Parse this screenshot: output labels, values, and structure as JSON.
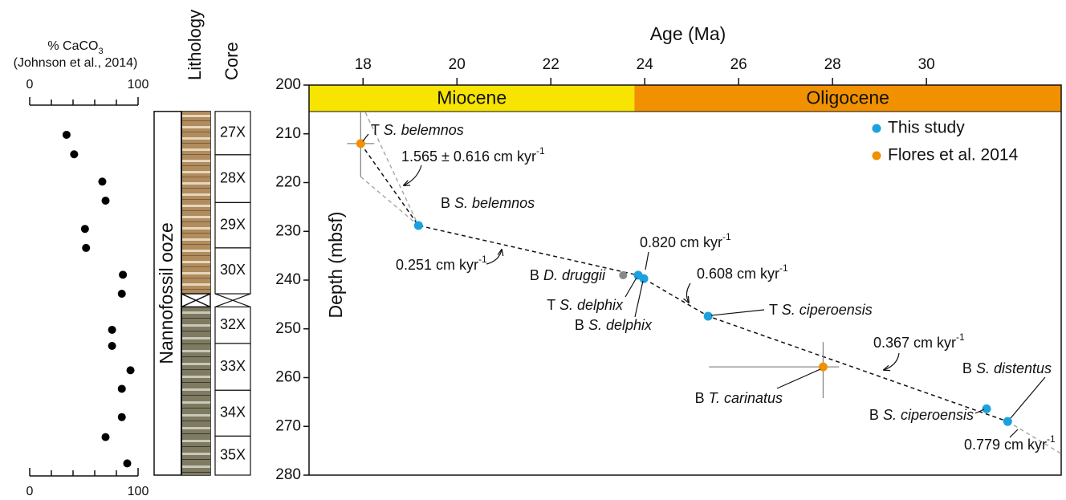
{
  "chart_data": [
    {
      "type": "scatter",
      "title": "% CaCO",
      "title_sub": "3",
      "subtitle": "(Johnson et al., 2014)",
      "xlim": [
        0,
        100
      ],
      "xticks": [
        0,
        100
      ],
      "xminorticks": [
        20,
        40,
        60,
        80
      ],
      "ylim": [
        200,
        280
      ],
      "color": "#000000",
      "x": [
        34,
        41,
        67,
        70,
        51,
        52,
        86,
        85,
        76,
        76,
        93,
        85,
        85,
        70,
        90
      ],
      "y": [
        210.2,
        214.2,
        219.8,
        223.7,
        229.5,
        233.4,
        238.9,
        242.8,
        250.2,
        253.5,
        258.5,
        262.3,
        268.1,
        272.2,
        277.6
      ]
    },
    {
      "type": "scatter",
      "xlabel": "Age (Ma)",
      "ylabel": "Depth (mbsf)",
      "xlim": [
        16.85,
        32.87
      ],
      "xticks": [
        18,
        20,
        22,
        24,
        26,
        28,
        30
      ],
      "ylim": [
        200,
        280
      ],
      "yticks": [
        200,
        210,
        220,
        230,
        240,
        250,
        260,
        270,
        280
      ],
      "legend": "upper right",
      "epochs": [
        {
          "name": "Miocene",
          "color": "#f7e400",
          "range": [
            16.85,
            23.78
          ]
        },
        {
          "name": "Oligocene",
          "color": "#f29100",
          "range": [
            23.78,
            32.87
          ]
        }
      ],
      "series": [
        {
          "name": "This study",
          "color": "#1ba1de",
          "x": [
            19.18,
            23.86,
            23.98,
            25.35,
            31.28,
            31.73
          ],
          "y": [
            228.8,
            239.0,
            239.7,
            247.4,
            266.4,
            269.0
          ],
          "labels": [
            {
              "prefix": "B",
              "taxon": "S. belemnos"
            },
            {
              "prefix": "T",
              "taxon": "S. delphix"
            },
            {
              "prefix": "B",
              "taxon": "S. delphix"
            },
            {
              "prefix": "T",
              "taxon": "S. ciperoensis"
            },
            {
              "prefix": "B",
              "taxon": "S. ciperoensis"
            },
            {
              "prefix": "B",
              "taxon": "S. distentus"
            }
          ]
        },
        {
          "name": "Flores et al. 2014",
          "color": "#f29100",
          "x": [
            17.95,
            27.8
          ],
          "y": [
            212.0,
            257.8
          ],
          "x_range": [
            [
              17.66,
              18.24
            ],
            [
              25.37,
              28.14
            ]
          ],
          "y_range": [
            [
              205.6,
              218.8
            ],
            [
              252.7,
              264.2
            ]
          ],
          "labels": [
            {
              "prefix": "T",
              "taxon": "S. belemnos"
            },
            {
              "prefix": "B",
              "taxon": "T. carinatus"
            }
          ]
        }
      ],
      "other_points": {
        "color": "#888888",
        "x": [
          23.54
        ],
        "y": [
          239.0
        ],
        "labels": [
          {
            "prefix": "B",
            "taxon": "D. druggii"
          }
        ]
      },
      "age_model": {
        "x": [
          17.95,
          19.18,
          23.86,
          23.98,
          25.35,
          31.73
        ],
        "y": [
          212.0,
          228.8,
          239.0,
          239.7,
          247.4,
          269.0
        ]
      },
      "extension": {
        "x": [
          31.73,
          32.87
        ],
        "y": [
          269.0,
          275.6
        ]
      },
      "envelope": [
        {
          "x": [
            18.05,
            19.18
          ],
          "y": [
            205.6,
            228.8
          ]
        },
        {
          "x": [
            17.95,
            19.18
          ],
          "y": [
            218.8,
            228.8
          ]
        }
      ],
      "rates": [
        {
          "text": "1.565 ± 0.616 cm kyr",
          "sup": "-1"
        },
        {
          "text": "0.251 cm kyr",
          "sup": "-1"
        },
        {
          "text": "0.820 cm kyr",
          "sup": "-1"
        },
        {
          "text": "0.608 cm kyr",
          "sup": "-1"
        },
        {
          "text": "0.367 cm kyr",
          "sup": "-1"
        },
        {
          "text": "0.779 cm kyr",
          "sup": "-1"
        }
      ]
    }
  ],
  "lithology": {
    "title": "Lithology",
    "unit": "Nannofossil ooze"
  },
  "cores": {
    "title": "Core",
    "items": [
      {
        "name": "27X",
        "top": 205.4,
        "bottom": 214.3
      },
      {
        "name": "28X",
        "top": 214.3,
        "bottom": 224.1
      },
      {
        "name": "29X",
        "top": 224.1,
        "bottom": 233.4
      },
      {
        "name": "30X",
        "top": 233.4,
        "bottom": 242.8
      },
      {
        "name": "32X",
        "top": 245.5,
        "bottom": 253.0
      },
      {
        "name": "33X",
        "top": 253.0,
        "bottom": 262.6
      },
      {
        "name": "34X",
        "top": 262.6,
        "bottom": 272.0
      },
      {
        "name": "35X",
        "top": 272.0,
        "bottom": 280.0
      }
    ]
  }
}
